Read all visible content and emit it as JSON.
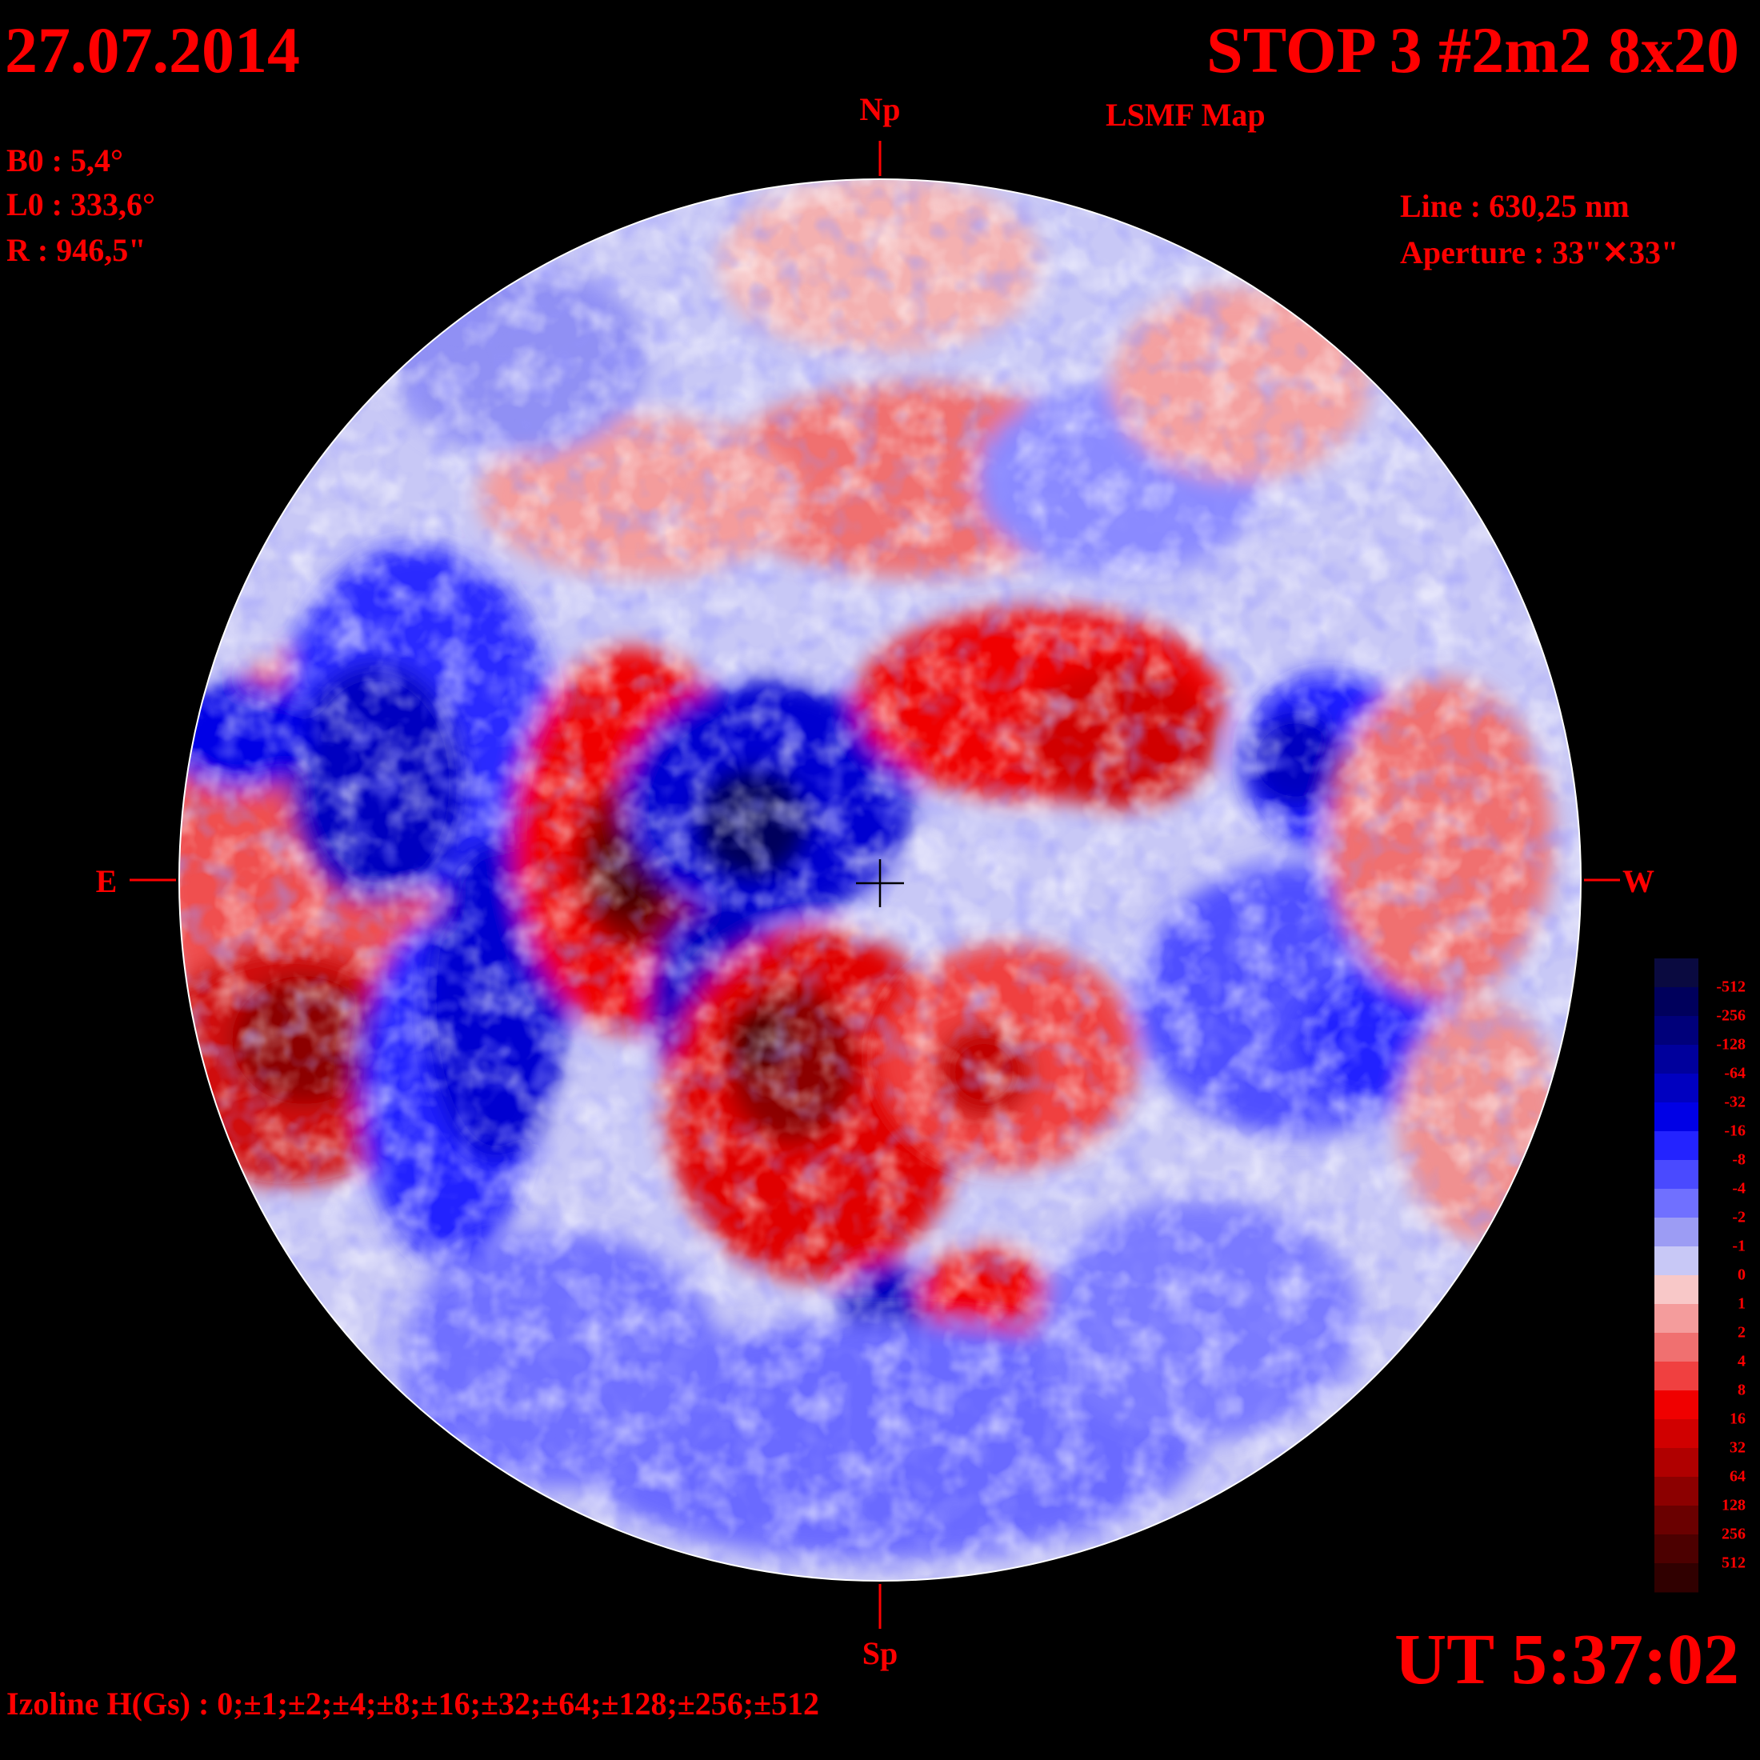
{
  "header": {
    "date": "27.07.2014",
    "title": "STOP 3 #2m2 8x20",
    "subtitle": "LSMF  Map"
  },
  "params": {
    "b0": "B0 : 5,4°",
    "l0": "L0 : 333,6°",
    "r": "R  : 946,5\"",
    "line": "Line :  630,25 nm",
    "aperture": "Aperture : 33\"✕33\""
  },
  "directions": {
    "north": "Np",
    "south": "Sp",
    "east": "E",
    "west": "W"
  },
  "time": "UT 5:37:02",
  "izoline": "Izoline H(Gs) : 0;±1;±2;±4;±8;±16;±32;±64;±128;±256;±512",
  "legend": {
    "levels": [
      "-512",
      "-256",
      "-128",
      "-64",
      "-32",
      "-16",
      "-8",
      "-4",
      "-2",
      "-1",
      "0",
      "1",
      "2",
      "4",
      "8",
      "16",
      "32",
      "64",
      "128",
      "256",
      "512"
    ],
    "colors": [
      "#0a0a40",
      "#00005c",
      "#00007a",
      "#00009c",
      "#0000c0",
      "#0000e6",
      "#2323ff",
      "#4a4aff",
      "#7070ff",
      "#9c9cf4",
      "#c8c8f6",
      "#f8c8c8",
      "#f49c9c",
      "#f07070",
      "#f04040",
      "#f00000",
      "#d00000",
      "#b00000",
      "#8c0000",
      "#6a0000",
      "#4c0000",
      "#300000"
    ]
  },
  "colors": {
    "text": "#ff0000",
    "background": "#000000",
    "contour": "#ffffff"
  }
}
